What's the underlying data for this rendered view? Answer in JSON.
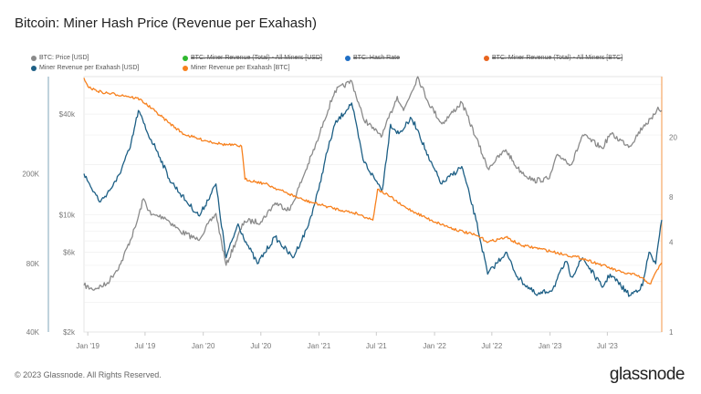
{
  "title": "Bitcoin: Miner Hash Price (Revenue per Exahash)",
  "footer": "© 2023 Glassnode. All Rights Reserved.",
  "logo": "glassnode",
  "legend": [
    {
      "label": "BTC: Price [USD]",
      "color": "#8a8a8a",
      "active": true
    },
    {
      "label": "BTC: Miner Revenue (Total) - All Miners [USD]",
      "color": "#2fb82f",
      "active": false
    },
    {
      "label": "BTC: Hash Rate",
      "color": "#1f6fc5",
      "active": false
    },
    {
      "label": "BTC: Miner Revenue (Total) - All Miners [BTC]",
      "color": "#e8641e",
      "active": false
    },
    {
      "label": "Miner Revenue per Exahash [USD]",
      "color": "#1d5f85",
      "active": true
    },
    {
      "label": "Miner Revenue per Exahash [BTC]",
      "color": "#f7811e",
      "active": true
    }
  ],
  "chart_data": {
    "type": "line",
    "title": "Bitcoin: Miner Hash Price (Revenue per Exahash)",
    "x_ticks": [
      "Jan '19",
      "Jul '19",
      "Jan '20",
      "Jul '20",
      "Jan '21",
      "Jul '21",
      "Jan '22",
      "Jul '22",
      "Jan '23",
      "Jul '23"
    ],
    "x_range": [
      "2018-12-20",
      "2023-12-20"
    ],
    "axes": {
      "left_usd_hashprice": {
        "scale": "log",
        "ticks": [
          "40K",
          "80K",
          "200K"
        ],
        "range": [
          40000,
          536000
        ]
      },
      "price": {
        "scale": "log",
        "ticks": [
          "$2k",
          "$6k",
          "$10k",
          "$40k"
        ],
        "range": [
          2000,
          67000
        ]
      },
      "right_btc_hashprice": {
        "scale": "log",
        "ticks": [
          "1",
          "4",
          "8",
          "20"
        ],
        "range": [
          1,
          51
        ]
      }
    },
    "grid": true,
    "series": [
      {
        "name": "BTC: Price [USD]",
        "axis": "price",
        "color": "#8a8a8a",
        "points": [
          [
            "2018-12-20",
            3800
          ],
          [
            "2019-01-15",
            3600
          ],
          [
            "2019-03-01",
            3850
          ],
          [
            "2019-04-15",
            5100
          ],
          [
            "2019-06-01",
            8500
          ],
          [
            "2019-06-26",
            12500
          ],
          [
            "2019-07-20",
            10000
          ],
          [
            "2019-09-01",
            9700
          ],
          [
            "2019-10-20",
            8000
          ],
          [
            "2019-12-15",
            7100
          ],
          [
            "2020-02-10",
            10200
          ],
          [
            "2020-03-13",
            5000
          ],
          [
            "2020-05-10",
            9200
          ],
          [
            "2020-07-01",
            9100
          ],
          [
            "2020-08-15",
            11800
          ],
          [
            "2020-10-01",
            10700
          ],
          [
            "2020-11-20",
            18500
          ],
          [
            "2020-12-31",
            29000
          ],
          [
            "2021-01-15",
            36000
          ],
          [
            "2021-02-20",
            55000
          ],
          [
            "2021-04-14",
            63000
          ],
          [
            "2021-05-20",
            38000
          ],
          [
            "2021-06-25",
            32000
          ],
          [
            "2021-07-20",
            30000
          ],
          [
            "2021-09-05",
            51000
          ],
          [
            "2021-09-25",
            42000
          ],
          [
            "2021-11-09",
            67000
          ],
          [
            "2021-12-10",
            48000
          ],
          [
            "2022-01-24",
            35000
          ],
          [
            "2022-03-28",
            47000
          ],
          [
            "2022-05-12",
            29000
          ],
          [
            "2022-06-18",
            19000
          ],
          [
            "2022-08-14",
            24500
          ],
          [
            "2022-09-20",
            19000
          ],
          [
            "2022-11-09",
            16000
          ],
          [
            "2022-12-30",
            16500
          ],
          [
            "2023-01-25",
            23000
          ],
          [
            "2023-03-10",
            20000
          ],
          [
            "2023-04-14",
            30000
          ],
          [
            "2023-06-15",
            25000
          ],
          [
            "2023-07-10",
            30500
          ],
          [
            "2023-09-10",
            25800
          ],
          [
            "2023-10-25",
            34500
          ],
          [
            "2023-11-20",
            37500
          ],
          [
            "2023-12-08",
            44000
          ],
          [
            "2023-12-20",
            42000
          ]
        ]
      },
      {
        "name": "Miner Revenue per Exahash [USD]",
        "axis": "left_usd_hashprice",
        "color": "#1d5f85",
        "points": [
          [
            "2018-12-20",
            200000
          ],
          [
            "2019-01-10",
            175000
          ],
          [
            "2019-02-10",
            150000
          ],
          [
            "2019-04-01",
            185000
          ],
          [
            "2019-05-15",
            260000
          ],
          [
            "2019-06-10",
            380000
          ],
          [
            "2019-07-10",
            300000
          ],
          [
            "2019-08-10",
            250000
          ],
          [
            "2019-09-15",
            190000
          ],
          [
            "2019-11-10",
            150000
          ],
          [
            "2019-12-20",
            130000
          ],
          [
            "2020-02-10",
            180000
          ],
          [
            "2020-03-13",
            85000
          ],
          [
            "2020-04-20",
            120000
          ],
          [
            "2020-05-15",
            100000
          ],
          [
            "2020-06-20",
            80000
          ],
          [
            "2020-08-15",
            105000
          ],
          [
            "2020-10-10",
            85000
          ],
          [
            "2020-11-25",
            115000
          ],
          [
            "2020-12-31",
            170000
          ],
          [
            "2021-01-20",
            230000
          ],
          [
            "2021-02-20",
            330000
          ],
          [
            "2021-04-14",
            410000
          ],
          [
            "2021-05-20",
            230000
          ],
          [
            "2021-06-25",
            190000
          ],
          [
            "2021-07-20",
            170000
          ],
          [
            "2021-08-15",
            330000
          ],
          [
            "2021-09-10",
            300000
          ],
          [
            "2021-10-20",
            350000
          ],
          [
            "2021-11-10",
            310000
          ],
          [
            "2021-12-15",
            230000
          ],
          [
            "2022-01-24",
            180000
          ],
          [
            "2022-03-28",
            215000
          ],
          [
            "2022-05-12",
            125000
          ],
          [
            "2022-06-18",
            72000
          ],
          [
            "2022-08-14",
            90000
          ],
          [
            "2022-09-20",
            70000
          ],
          [
            "2022-11-20",
            58000
          ],
          [
            "2023-01-10",
            62000
          ],
          [
            "2023-02-20",
            82000
          ],
          [
            "2023-03-10",
            70000
          ],
          [
            "2023-04-14",
            85000
          ],
          [
            "2023-06-15",
            63000
          ],
          [
            "2023-07-10",
            72000
          ],
          [
            "2023-09-10",
            58000
          ],
          [
            "2023-10-20",
            64000
          ],
          [
            "2023-11-10",
            90000
          ],
          [
            "2023-12-01",
            80000
          ],
          [
            "2023-12-20",
            125000
          ]
        ]
      },
      {
        "name": "Miner Revenue per Exahash [BTC]",
        "axis": "right_btc_hashprice",
        "color": "#f7811e",
        "points": [
          [
            "2018-12-20",
            50
          ],
          [
            "2019-01-05",
            43
          ],
          [
            "2019-02-15",
            40
          ],
          [
            "2019-05-01",
            38
          ],
          [
            "2019-06-15",
            36
          ],
          [
            "2019-08-01",
            30
          ],
          [
            "2019-09-15",
            25
          ],
          [
            "2019-11-01",
            21
          ],
          [
            "2019-12-20",
            19.5
          ],
          [
            "2020-03-01",
            18
          ],
          [
            "2020-05-01",
            17.5
          ],
          [
            "2020-05-12",
            10.5
          ],
          [
            "2020-07-15",
            9.8
          ],
          [
            "2020-09-15",
            8.6
          ],
          [
            "2020-11-15",
            7.6
          ],
          [
            "2021-01-15",
            7.0
          ],
          [
            "2021-03-15",
            6.5
          ],
          [
            "2021-05-01",
            6.2
          ],
          [
            "2021-06-20",
            5.6
          ],
          [
            "2021-07-05",
            9.0
          ],
          [
            "2021-08-15",
            8.0
          ],
          [
            "2021-09-20",
            7.0
          ],
          [
            "2021-11-01",
            6.3
          ],
          [
            "2021-12-20",
            5.6
          ],
          [
            "2022-03-01",
            4.9
          ],
          [
            "2022-05-15",
            4.4
          ],
          [
            "2022-06-20",
            4.0
          ],
          [
            "2022-08-15",
            4.3
          ],
          [
            "2022-10-01",
            3.8
          ],
          [
            "2022-12-01",
            3.6
          ],
          [
            "2023-02-15",
            3.3
          ],
          [
            "2023-04-15",
            3.1
          ],
          [
            "2023-06-15",
            2.8
          ],
          [
            "2023-08-15",
            2.5
          ],
          [
            "2023-10-01",
            2.4
          ],
          [
            "2023-11-15",
            2.1
          ],
          [
            "2023-12-05",
            2.6
          ],
          [
            "2023-12-20",
            2.9
          ]
        ]
      }
    ]
  }
}
